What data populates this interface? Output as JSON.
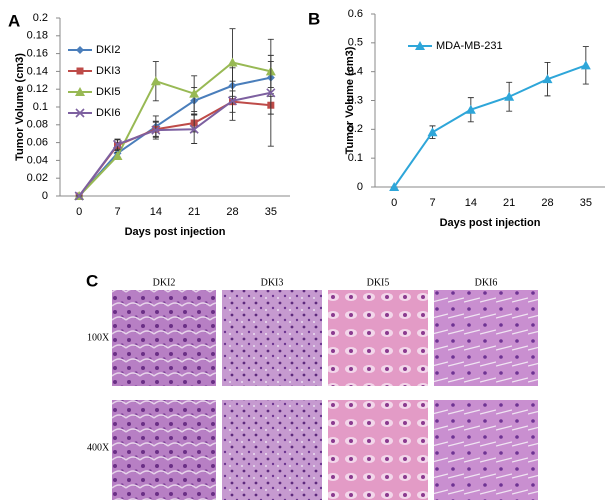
{
  "panel_labels": [
    "A",
    "B",
    "C"
  ],
  "chart_data": [
    {
      "type": "line",
      "xlabel": "Days post injection",
      "ylabel": "Tumor Volume (cm3)",
      "categories": [
        "0",
        "7",
        "14",
        "21",
        "28",
        "35"
      ],
      "ylim": [
        0,
        0.2
      ],
      "yticks": [
        0,
        0.02,
        0.04,
        0.06,
        0.08,
        0.1,
        0.12,
        0.14,
        0.16,
        0.18,
        0.2
      ],
      "legend": "upper left",
      "series": [
        {
          "name": "DKI2",
          "color": "#4a7ebb",
          "marker": "diamond",
          "values": [
            0,
            0.048,
            0.078,
            0.107,
            0.124,
            0.133
          ],
          "errors": [
            0,
            0.005,
            0.012,
            0.015,
            0.02,
            0.018
          ]
        },
        {
          "name": "DKI3",
          "color": "#be4b48",
          "marker": "square",
          "values": [
            0,
            0.057,
            0.075,
            0.082,
            0.106,
            0.102
          ],
          "errors": [
            0,
            0.006,
            0.008,
            0.01,
            0.012,
            0.01
          ]
        },
        {
          "name": "DKI5",
          "color": "#98b954",
          "marker": "triangle",
          "values": [
            0,
            0.045,
            0.129,
            0.115,
            0.15,
            0.14
          ],
          "errors": [
            0,
            0.004,
            0.022,
            0.02,
            0.038,
            0.018
          ]
        },
        {
          "name": "DKI6",
          "color": "#7d60a0",
          "marker": "x",
          "values": [
            0,
            0.058,
            0.074,
            0.075,
            0.107,
            0.116
          ],
          "errors": [
            0,
            0.006,
            0.01,
            0.016,
            0.022,
            0.06
          ]
        }
      ]
    },
    {
      "type": "line",
      "xlabel": "Days post injection",
      "ylabel": "Tumor Volume (cm3)",
      "categories": [
        "0",
        "7",
        "14",
        "21",
        "28",
        "35"
      ],
      "ylim": [
        0,
        0.6
      ],
      "yticks": [
        0,
        0.1,
        0.2,
        0.3,
        0.4,
        0.5,
        0.6
      ],
      "legend": "upper left",
      "series": [
        {
          "name": "MDA-MB-231",
          "color": "#2ea6d9",
          "marker": "triangle",
          "values": [
            0,
            0.19,
            0.268,
            0.313,
            0.374,
            0.422
          ],
          "errors": [
            0,
            0.022,
            0.042,
            0.05,
            0.058,
            0.065
          ]
        }
      ]
    }
  ],
  "histology": {
    "columns": [
      "DKI2",
      "DKI3",
      "DKI5",
      "DKI6"
    ],
    "rows": [
      "100X",
      "400X"
    ]
  }
}
